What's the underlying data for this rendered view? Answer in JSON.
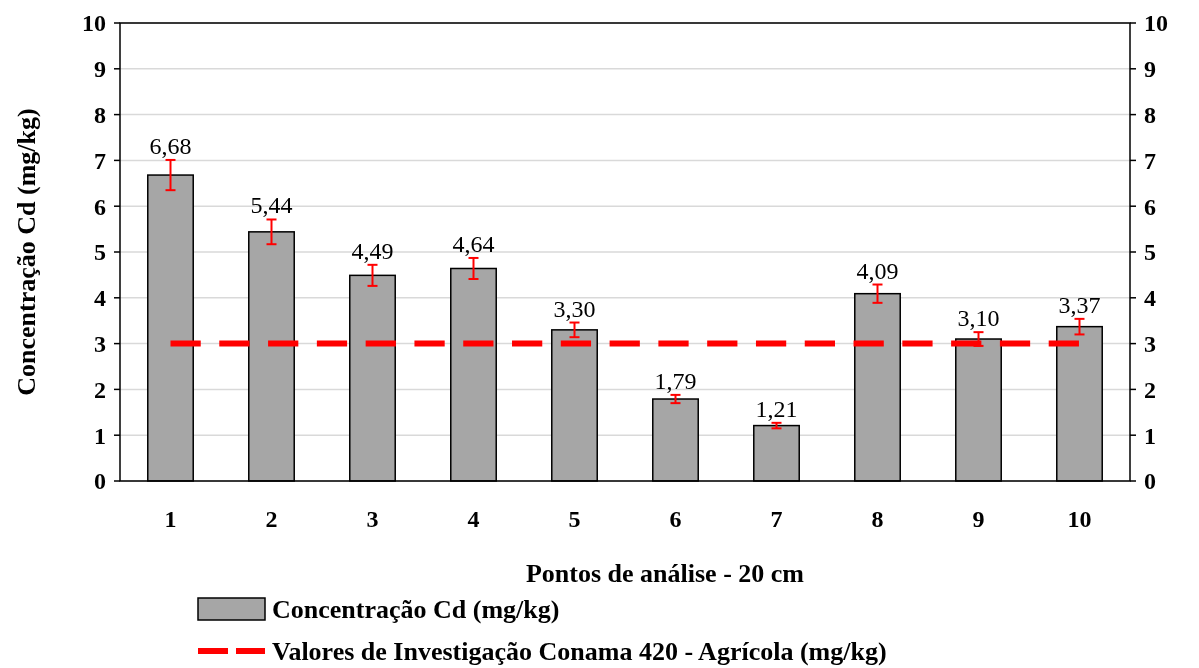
{
  "chart_data": {
    "type": "bar",
    "xlabel": "Pontos de análise - 20 cm",
    "ylabel": "Concentração Cd (mg/kg)",
    "categories": [
      "1",
      "2",
      "3",
      "4",
      "5",
      "6",
      "7",
      "8",
      "9",
      "10"
    ],
    "series": [
      {
        "name": "Concentração Cd (mg/kg)",
        "type": "bar",
        "color": "#a6a6a6",
        "values": [
          6.68,
          5.44,
          4.49,
          4.64,
          3.3,
          1.79,
          1.21,
          4.09,
          3.1,
          3.37
        ],
        "errors": [
          0.33,
          0.27,
          0.23,
          0.23,
          0.16,
          0.09,
          0.06,
          0.2,
          0.15,
          0.17
        ],
        "value_labels": [
          "6,68",
          "5,44",
          "4,49",
          "4,64",
          "3,30",
          "1,79",
          "1,21",
          "4,09",
          "3,10",
          "3,37"
        ]
      },
      {
        "name": "Valores de Investigação Conama 420 - Agrícola (mg/kg)",
        "type": "line",
        "color": "#ff0000",
        "line_style": "dashed",
        "values": [
          3,
          3,
          3,
          3,
          3,
          3,
          3,
          3,
          3,
          3
        ]
      }
    ],
    "ylim": [
      0,
      10
    ],
    "yticks": [
      0,
      1,
      2,
      3,
      4,
      5,
      6,
      7,
      8,
      9,
      10
    ],
    "y2lim": [
      0,
      10
    ],
    "y2ticks": [
      0,
      1,
      2,
      3,
      4,
      5,
      6,
      7,
      8,
      9,
      10
    ],
    "grid": "y",
    "legend": "bottom"
  }
}
